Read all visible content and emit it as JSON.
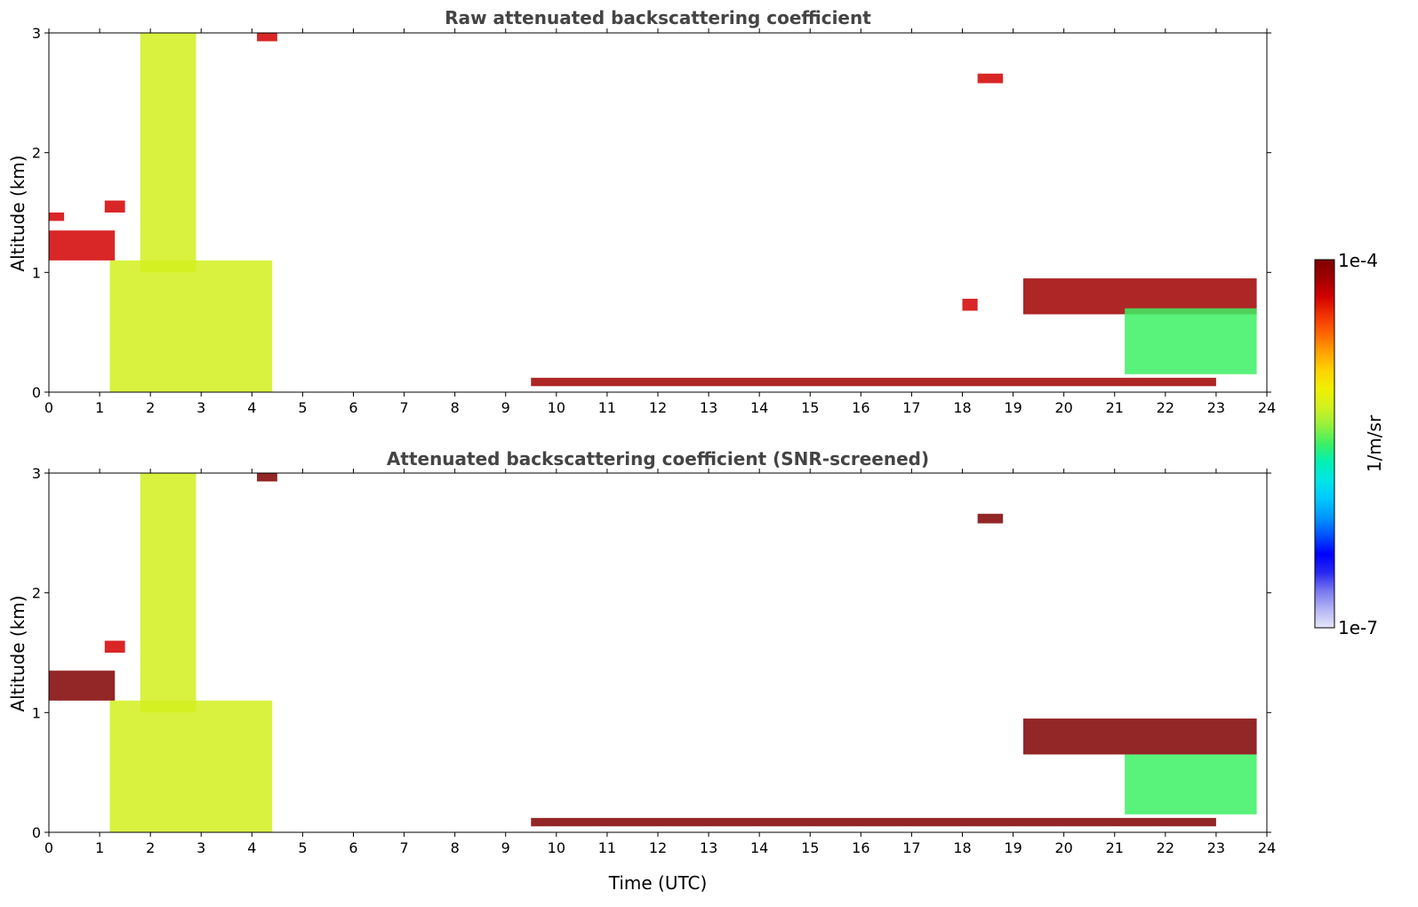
{
  "figure": {
    "colorbar": {
      "max_label": "1e-4",
      "min_label": "1e-7",
      "unit_label": "1/m/sr",
      "colors": [
        "#e6e6fa",
        "#b4b4f5",
        "#7878f0",
        "#2828f0",
        "#0000ff",
        "#0050ff",
        "#0096ff",
        "#00c8ff",
        "#00e6e6",
        "#00f0b4",
        "#3cf064",
        "#96f03c",
        "#d2f01e",
        "#f0f000",
        "#ffd200",
        "#ffa000",
        "#ff6400",
        "#f03200",
        "#d20000",
        "#a00000",
        "#800000"
      ]
    },
    "panels": [
      {
        "title": "Raw attenuated backscattering coefficient",
        "ylabel": "Altitude (km)",
        "xlabel": ""
      },
      {
        "title": "Attenuated backscattering coefficient (SNR-screened)",
        "ylabel": "Altitude (km)",
        "xlabel": "Time (UTC)"
      }
    ]
  },
  "chart_data": [
    {
      "type": "heatmap",
      "title": "Raw attenuated backscattering coefficient",
      "xlabel": "",
      "ylabel": "Altitude (km)",
      "xlim": [
        0,
        24
      ],
      "ylim": [
        0,
        3
      ],
      "x_ticks": [
        "0",
        "1",
        "2",
        "3",
        "4",
        "5",
        "6",
        "7",
        "8",
        "9",
        "10",
        "11",
        "12",
        "13",
        "14",
        "15",
        "16",
        "17",
        "18",
        "19",
        "20",
        "21",
        "22",
        "23",
        "24"
      ],
      "y_ticks": [
        "0",
        "1",
        "2",
        "3"
      ],
      "colorbar_range": [
        "1e-7",
        "1e-4"
      ],
      "colorbar_unit": "1/m/sr",
      "color_scale": "log",
      "features": [
        {
          "x0": 1.2,
          "x1": 4.4,
          "y0": 0.0,
          "y1": 1.1,
          "level": 0.62
        },
        {
          "x0": 1.8,
          "x1": 2.9,
          "y0": 1.0,
          "y1": 3.0,
          "level": 0.6
        },
        {
          "x0": 0.0,
          "x1": 1.3,
          "y0": 1.1,
          "y1": 1.35,
          "level": 0.92
        },
        {
          "x0": 1.1,
          "x1": 1.5,
          "y0": 1.5,
          "y1": 1.6,
          "level": 0.88
        },
        {
          "x0": 0.0,
          "x1": 0.3,
          "y0": 1.43,
          "y1": 1.5,
          "level": 0.88
        },
        {
          "x0": 4.1,
          "x1": 4.5,
          "y0": 2.93,
          "y1": 3.0,
          "level": 0.88
        },
        {
          "x0": 9.5,
          "x1": 23.0,
          "y0": 0.05,
          "y1": 0.12,
          "level": 0.96
        },
        {
          "x0": 19.2,
          "x1": 23.8,
          "y0": 0.65,
          "y1": 0.95,
          "level": 0.96
        },
        {
          "x0": 18.0,
          "x1": 18.3,
          "y0": 0.68,
          "y1": 0.78,
          "level": 0.9
        },
        {
          "x0": 18.3,
          "x1": 18.8,
          "y0": 2.58,
          "y1": 2.66,
          "level": 0.9
        },
        {
          "x0": 21.2,
          "x1": 23.8,
          "y0": 0.15,
          "y1": 0.7,
          "level": 0.5
        }
      ]
    },
    {
      "type": "heatmap",
      "title": "Attenuated backscattering coefficient (SNR-screened)",
      "xlabel": "Time (UTC)",
      "ylabel": "Altitude (km)",
      "xlim": [
        0,
        24
      ],
      "ylim": [
        0,
        3
      ],
      "x_ticks": [
        "0",
        "1",
        "2",
        "3",
        "4",
        "5",
        "6",
        "7",
        "8",
        "9",
        "10",
        "11",
        "12",
        "13",
        "14",
        "15",
        "16",
        "17",
        "18",
        "19",
        "20",
        "21",
        "22",
        "23",
        "24"
      ],
      "y_ticks": [
        "0",
        "1",
        "2",
        "3"
      ],
      "colorbar_range": [
        "1e-7",
        "1e-4"
      ],
      "colorbar_unit": "1/m/sr",
      "color_scale": "log",
      "features": [
        {
          "x0": 1.2,
          "x1": 4.4,
          "y0": 0.0,
          "y1": 1.1,
          "level": 0.62
        },
        {
          "x0": 1.8,
          "x1": 2.9,
          "y0": 1.0,
          "y1": 3.0,
          "level": 0.58
        },
        {
          "x0": 0.0,
          "x1": 1.3,
          "y0": 1.1,
          "y1": 1.35,
          "level": 1.0
        },
        {
          "x0": 1.1,
          "x1": 1.5,
          "y0": 1.5,
          "y1": 1.6,
          "level": 0.9
        },
        {
          "x0": 4.1,
          "x1": 4.5,
          "y0": 2.93,
          "y1": 3.0,
          "level": 1.0
        },
        {
          "x0": 9.5,
          "x1": 23.0,
          "y0": 0.05,
          "y1": 0.12,
          "level": 1.0
        },
        {
          "x0": 19.2,
          "x1": 23.8,
          "y0": 0.65,
          "y1": 0.95,
          "level": 1.0
        },
        {
          "x0": 18.3,
          "x1": 18.8,
          "y0": 2.58,
          "y1": 2.66,
          "level": 1.0
        },
        {
          "x0": 21.2,
          "x1": 23.8,
          "y0": 0.15,
          "y1": 0.65,
          "level": 0.5
        }
      ]
    }
  ]
}
